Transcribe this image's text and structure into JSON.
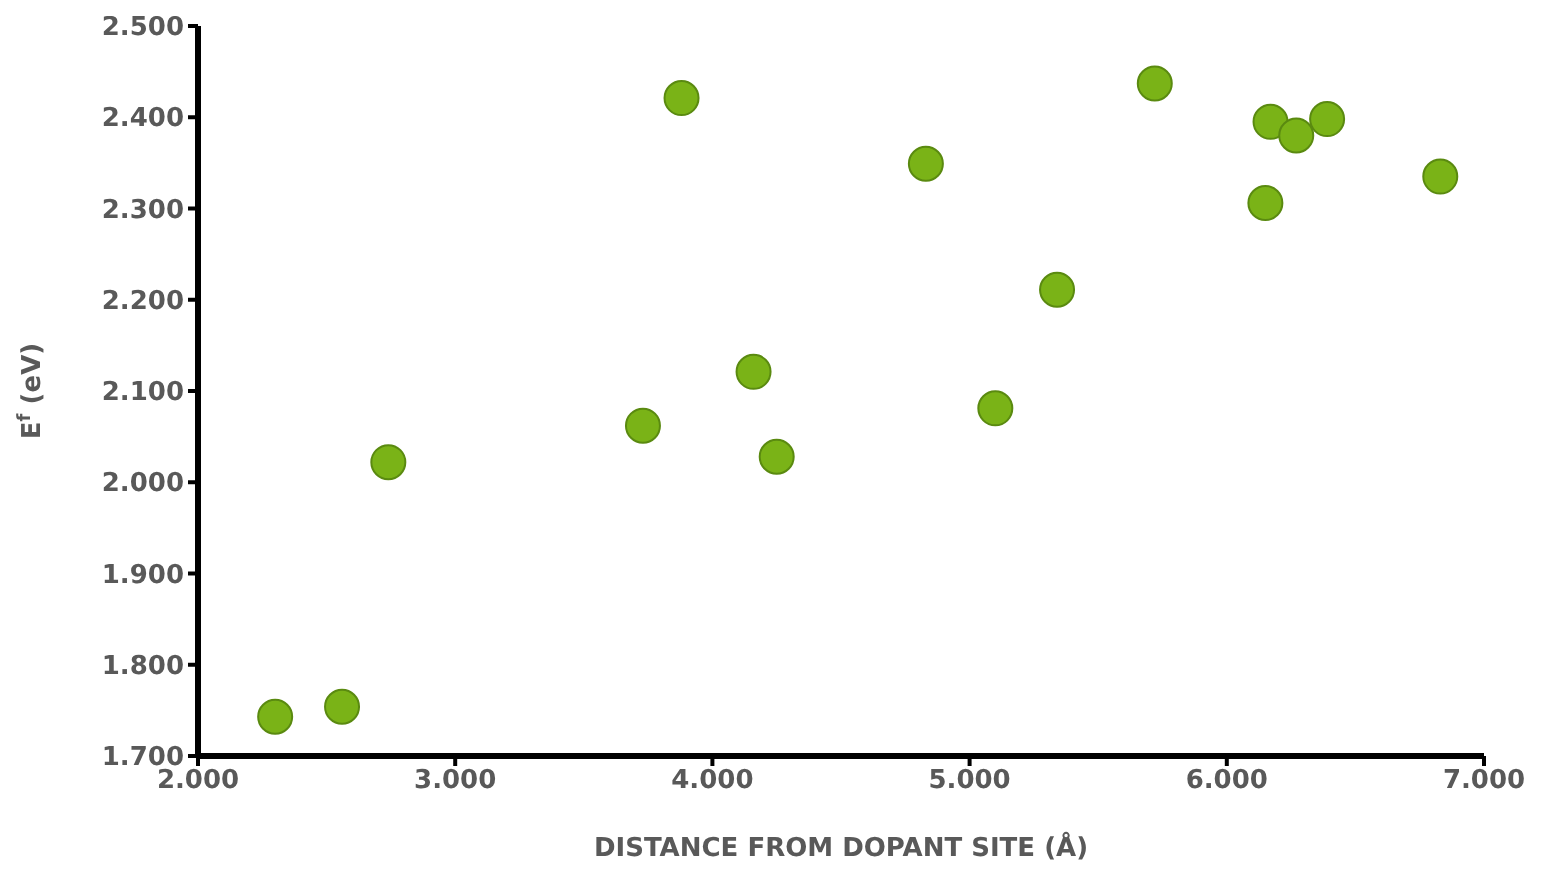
{
  "chart_data": {
    "type": "scatter",
    "xlabel": "DISTANCE FROM DOPANT SITE (Å)",
    "ylabel": "E$^{f}$ (eV)",
    "x": [
      2.3,
      2.56,
      2.74,
      3.73,
      3.88,
      4.16,
      4.25,
      4.83,
      5.1,
      5.34,
      5.72,
      6.15,
      6.17,
      6.27,
      6.39,
      6.83
    ],
    "values": [
      1.743,
      1.754,
      2.022,
      2.062,
      2.421,
      2.121,
      2.028,
      2.349,
      2.081,
      2.211,
      2.437,
      2.306,
      2.395,
      2.38,
      2.398,
      2.335
    ],
    "color": "#7ab317",
    "marker": "circle",
    "xlim": [
      2.0,
      7.0
    ],
    "xticks": [
      {
        "value": 2,
        "label": "2.000"
      },
      {
        "value": 3,
        "label": "3.000"
      },
      {
        "value": 4,
        "label": "4.000"
      },
      {
        "value": 5,
        "label": "5.000"
      },
      {
        "value": 6,
        "label": "6.000"
      },
      {
        "value": 7,
        "label": "7.000"
      }
    ],
    "ylim": [
      1.7,
      2.5
    ],
    "yticks": [
      {
        "value": 1.7,
        "label": "1.700"
      },
      {
        "value": 1.8,
        "label": "1.800"
      },
      {
        "value": 1.9,
        "label": "1.900"
      },
      {
        "value": 2.0,
        "label": "2.000"
      },
      {
        "value": 2.1,
        "label": "2.100"
      },
      {
        "value": 2.2,
        "label": "2.200"
      },
      {
        "value": 2.3,
        "label": "2.300"
      },
      {
        "value": 2.4,
        "label": "2.400"
      },
      {
        "value": 2.5,
        "label": "2.500"
      }
    ],
    "grid": false,
    "legend": false
  }
}
